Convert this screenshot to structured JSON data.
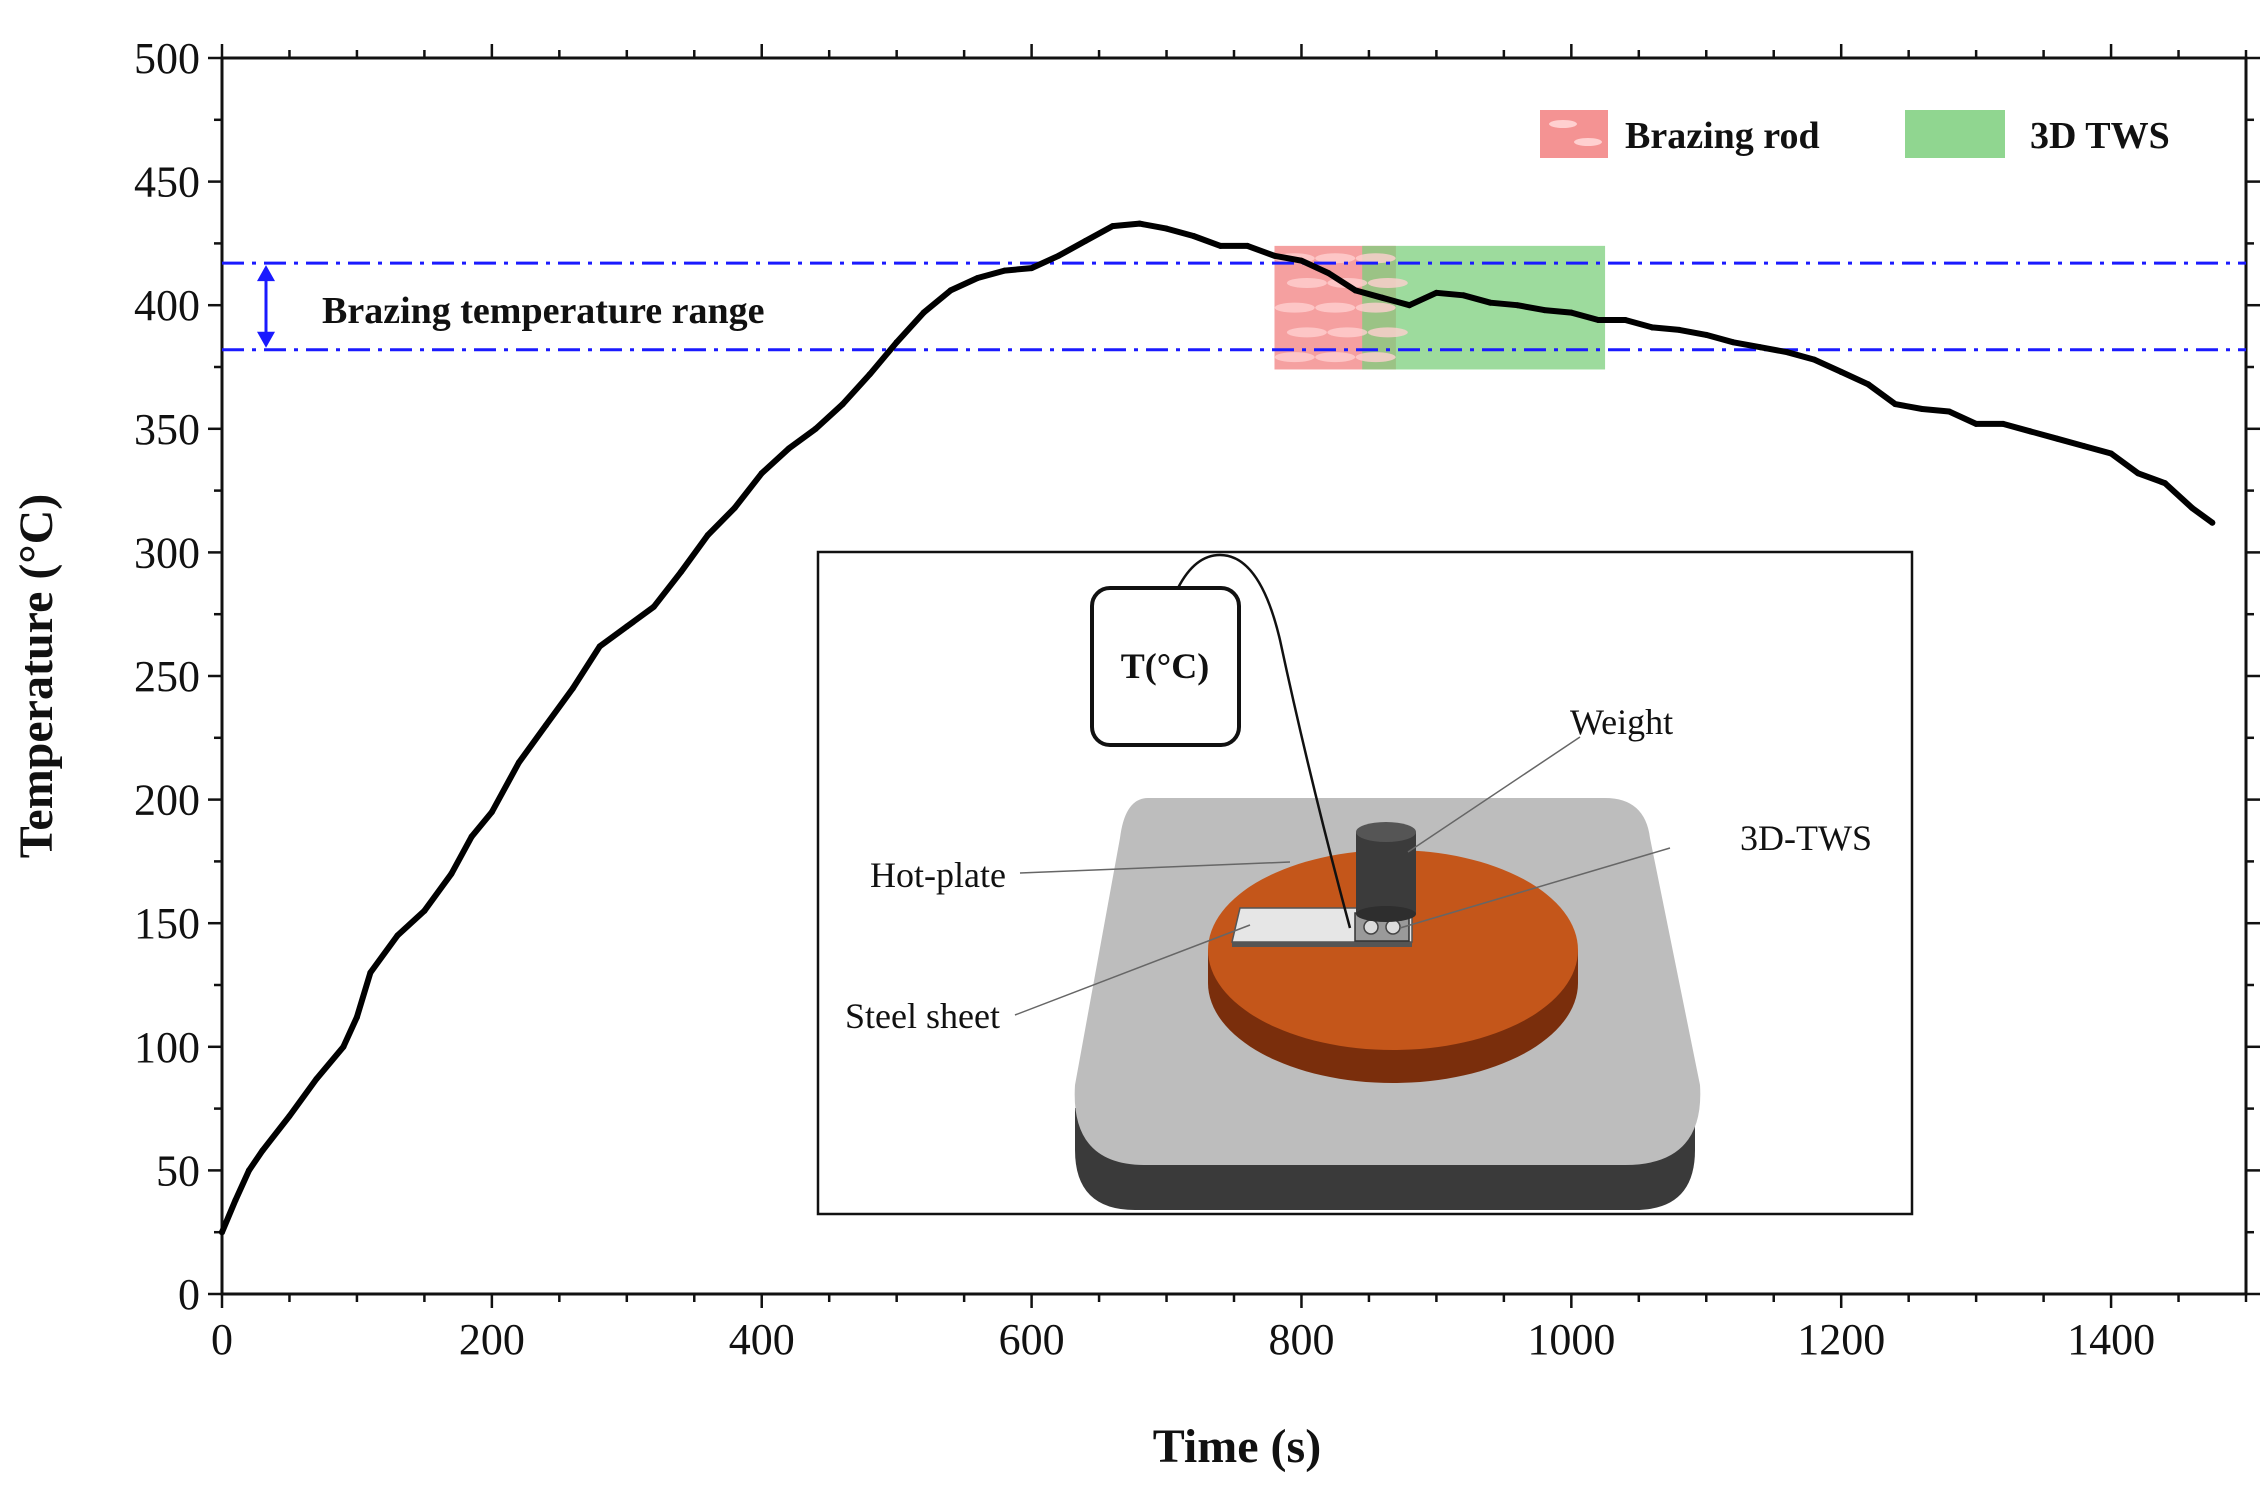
{
  "chart_data": {
    "type": "line",
    "xlabel": "Time (s)",
    "ylabel": "Temperature (°C)",
    "xlim": [
      0,
      1500
    ],
    "ylim": [
      0,
      500
    ],
    "x_ticks": [
      0,
      200,
      400,
      600,
      800,
      1000,
      1200,
      1400
    ],
    "y_ticks": [
      0,
      50,
      100,
      150,
      200,
      250,
      300,
      350,
      400,
      450,
      500
    ],
    "grid": false,
    "series": [
      {
        "color": "#000000",
        "x": [
          0,
          10,
          20,
          30,
          50,
          70,
          90,
          100,
          110,
          130,
          150,
          170,
          185,
          200,
          220,
          240,
          260,
          280,
          300,
          320,
          340,
          360,
          380,
          400,
          420,
          440,
          460,
          480,
          500,
          520,
          540,
          560,
          580,
          600,
          620,
          640,
          660,
          680,
          700,
          720,
          740,
          760,
          780,
          800,
          820,
          840,
          860,
          880,
          900,
          920,
          940,
          960,
          980,
          1000,
          1020,
          1040,
          1060,
          1080,
          1100,
          1120,
          1140,
          1160,
          1180,
          1200,
          1220,
          1240,
          1260,
          1280,
          1300,
          1320,
          1340,
          1360,
          1380,
          1400,
          1420,
          1440,
          1460,
          1475
        ],
        "y": [
          25,
          38,
          50,
          58,
          72,
          87,
          100,
          112,
          130,
          145,
          155,
          170,
          185,
          195,
          215,
          230,
          245,
          262,
          270,
          278,
          292,
          307,
          318,
          332,
          342,
          350,
          360,
          372,
          385,
          397,
          406,
          411,
          414,
          415,
          420,
          426,
          432,
          433,
          431,
          428,
          424,
          424,
          420,
          418,
          413,
          406,
          403,
          400,
          405,
          404,
          401,
          400,
          398,
          397,
          394,
          394,
          391,
          390,
          388,
          385,
          383,
          381,
          378,
          373,
          368,
          360,
          358,
          357,
          352,
          352,
          349,
          346,
          343,
          340,
          332,
          328,
          318,
          312
        ]
      }
    ],
    "reference_lines": [
      {
        "y": 417,
        "color": "#1a1aff",
        "style": "dash-dot"
      },
      {
        "y": 382,
        "color": "#1a1aff",
        "style": "dash-dot"
      }
    ],
    "range_annotation": {
      "y_from": 382,
      "y_to": 417,
      "label": "Brazing temperature range"
    },
    "shaded_bands": [
      {
        "name": "Brazing rod",
        "x_from": 780,
        "x_to": 870,
        "y_from": 374,
        "y_to": 424,
        "color": "#f28080"
      },
      {
        "name": "3D TWS",
        "x_from": 845,
        "x_to": 1025,
        "y_from": 374,
        "y_to": 424,
        "color": "#7ccf7c"
      }
    ],
    "legend": {
      "placement": "top-right",
      "entries": [
        "Brazing rod",
        "3D TWS"
      ]
    }
  },
  "inset": {
    "sensor_label": "T(°C)",
    "labels": {
      "weight": "Weight",
      "tws": "3D-TWS",
      "hot_plate": "Hot-plate",
      "steel_sheet": "Steel sheet"
    },
    "colors": {
      "hot_plate_base": "#bdbdbd",
      "hot_plate_side": "#3a3a3a",
      "disc_top": "#c4561a",
      "disc_side": "#7a2e0c",
      "weight": "#3b3b3b"
    }
  }
}
